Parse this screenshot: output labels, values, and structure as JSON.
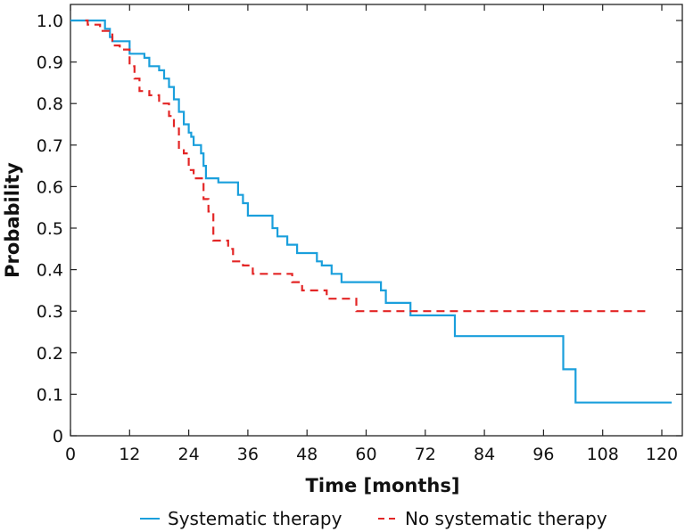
{
  "chart_data": {
    "type": "line",
    "step": true,
    "xlabel": "Time [months]",
    "ylabel": "Probability",
    "xlim": [
      0,
      122
    ],
    "ylim": [
      0,
      1.0
    ],
    "x_ticks": [
      0,
      12,
      24,
      36,
      48,
      60,
      72,
      84,
      96,
      108,
      120
    ],
    "y_ticks": [
      {
        "value": 0,
        "label": "0"
      },
      {
        "value": 0.1,
        "label": "0.1"
      },
      {
        "value": 0.2,
        "label": "0.2"
      },
      {
        "value": 0.3,
        "label": "0.3"
      },
      {
        "value": 0.4,
        "label": "0.4"
      },
      {
        "value": 0.5,
        "label": "0.5"
      },
      {
        "value": 0.6,
        "label": "0.6"
      },
      {
        "value": 0.7,
        "label": "0.7"
      },
      {
        "value": 0.8,
        "label": "0.8"
      },
      {
        "value": 0.9,
        "label": "0.9"
      },
      {
        "value": 1.0,
        "label": "1.0"
      }
    ],
    "grid": false,
    "legend_position": "bottom",
    "series": [
      {
        "name": "Systematic therapy",
        "color": "#1a9fdc",
        "dash": "solid",
        "points": [
          [
            0,
            1.0
          ],
          [
            7,
            0.98
          ],
          [
            8,
            0.96
          ],
          [
            8.5,
            0.95
          ],
          [
            12,
            0.92
          ],
          [
            15,
            0.91
          ],
          [
            16,
            0.89
          ],
          [
            18,
            0.88
          ],
          [
            19,
            0.86
          ],
          [
            20,
            0.84
          ],
          [
            21,
            0.81
          ],
          [
            22,
            0.78
          ],
          [
            23,
            0.75
          ],
          [
            24,
            0.73
          ],
          [
            24.5,
            0.72
          ],
          [
            25,
            0.7
          ],
          [
            26.5,
            0.68
          ],
          [
            27,
            0.65
          ],
          [
            27.5,
            0.62
          ],
          [
            30,
            0.61
          ],
          [
            34,
            0.58
          ],
          [
            35,
            0.56
          ],
          [
            36,
            0.53
          ],
          [
            41,
            0.5
          ],
          [
            42,
            0.48
          ],
          [
            44,
            0.46
          ],
          [
            46,
            0.44
          ],
          [
            50,
            0.42
          ],
          [
            51,
            0.41
          ],
          [
            53,
            0.39
          ],
          [
            55,
            0.37
          ],
          [
            63,
            0.35
          ],
          [
            64,
            0.32
          ],
          [
            69,
            0.29
          ],
          [
            78,
            0.24
          ],
          [
            100,
            0.16
          ],
          [
            102.5,
            0.08
          ],
          [
            122,
            0.08
          ]
        ]
      },
      {
        "name": "No systematic therapy",
        "color": "#e32626",
        "dash": "dashed",
        "points": [
          [
            3,
            1.0
          ],
          [
            3.5,
            0.99
          ],
          [
            6,
            0.975
          ],
          [
            8.5,
            0.94
          ],
          [
            10,
            0.93
          ],
          [
            12,
            0.89
          ],
          [
            13,
            0.86
          ],
          [
            14,
            0.83
          ],
          [
            16,
            0.82
          ],
          [
            18,
            0.8
          ],
          [
            20,
            0.77
          ],
          [
            21,
            0.74
          ],
          [
            22,
            0.69
          ],
          [
            23,
            0.68
          ],
          [
            24,
            0.64
          ],
          [
            25,
            0.62
          ],
          [
            27,
            0.57
          ],
          [
            28,
            0.54
          ],
          [
            29,
            0.47
          ],
          [
            32,
            0.45
          ],
          [
            33,
            0.42
          ],
          [
            35,
            0.41
          ],
          [
            37,
            0.39
          ],
          [
            45,
            0.37
          ],
          [
            47,
            0.35
          ],
          [
            52,
            0.33
          ],
          [
            58,
            0.3
          ],
          [
            117,
            0.3
          ]
        ]
      }
    ]
  }
}
